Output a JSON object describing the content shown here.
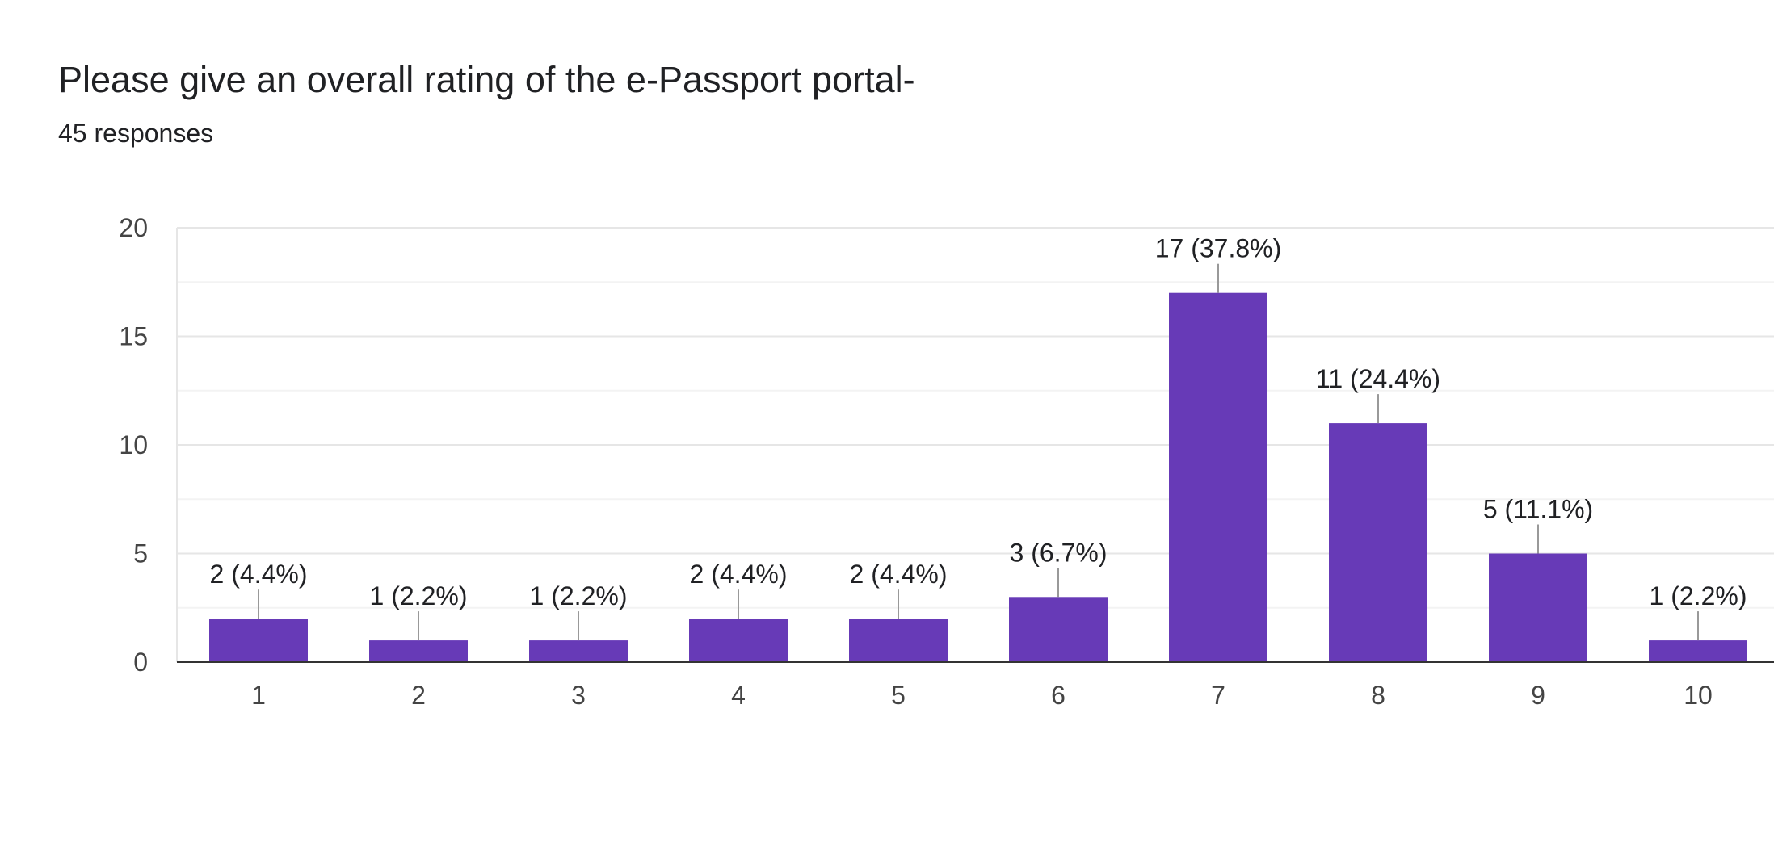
{
  "header": {
    "title": "Please give an overall rating of the e-Passport portal-",
    "responses": "45 responses"
  },
  "colors": {
    "bar": "#673ab7",
    "axis": "#333333",
    "grid_major": "#e6e6e6",
    "grid_minor": "#f3f3f3",
    "leader": "#999999"
  },
  "chart_data": {
    "type": "bar",
    "title": "Please give an overall rating of the e-Passport portal-",
    "subtitle": "45 responses",
    "xlabel": "",
    "ylabel": "",
    "categories": [
      "1",
      "2",
      "3",
      "4",
      "5",
      "6",
      "7",
      "8",
      "9",
      "10"
    ],
    "values": [
      2,
      1,
      1,
      2,
      2,
      3,
      17,
      11,
      5,
      1
    ],
    "data_labels": [
      "2 (4.4%)",
      "1 (2.2%)",
      "1 (2.2%)",
      "2 (4.4%)",
      "2 (4.4%)",
      "3 (6.7%)",
      "17 (37.8%)",
      "11 (24.4%)",
      "5 (11.1%)",
      "1 (2.2%)"
    ],
    "ylim": [
      0,
      20
    ],
    "yticks": [
      "0",
      "5",
      "10",
      "15",
      "20"
    ],
    "grid": true,
    "legend": "none"
  }
}
